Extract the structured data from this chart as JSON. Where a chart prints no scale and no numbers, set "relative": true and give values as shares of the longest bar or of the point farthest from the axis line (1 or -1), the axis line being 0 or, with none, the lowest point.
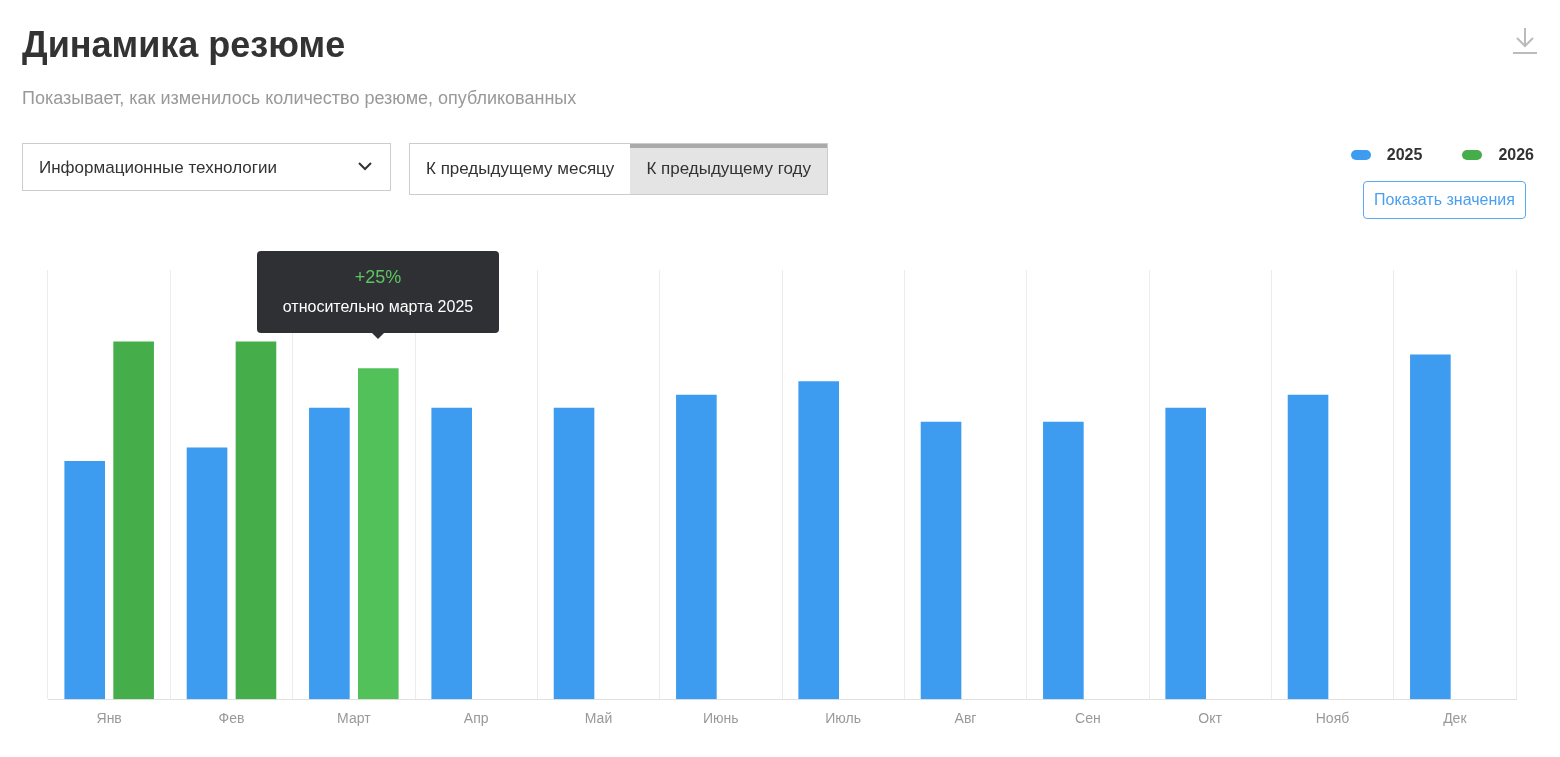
{
  "chart_data": {
    "type": "bar",
    "title": "Динамика резюме",
    "subtitle": "Показывает, как изменилось количество резюме, опубликованных",
    "relative": true,
    "grid": "x",
    "legend": "top right",
    "categories": [
      "Янв",
      "Фев",
      "Март",
      "Апр",
      "Май",
      "Июнь",
      "Июль",
      "Авг",
      "Сен",
      "Окт",
      "Нояб",
      "Дек"
    ],
    "series": [
      {
        "name": "2025",
        "color": "#3d9cf0",
        "values": [
          0.666,
          0.704,
          0.815,
          0.815,
          0.815,
          0.851,
          0.889,
          0.776,
          0.776,
          0.815,
          0.851,
          0.964
        ]
      },
      {
        "name": "2026",
        "color": "#46ad4b",
        "colors": [
          "#46ad4b",
          "#46ad4b",
          "#53c15a",
          "#46ad4b",
          "#46ad4b",
          "#46ad4b",
          "#46ad4b",
          "#46ad4b",
          "#46ad4b",
          "#46ad4b",
          "#46ad4b",
          "#46ad4b"
        ],
        "values": [
          1,
          1,
          0.925,
          null,
          null,
          null,
          null,
          null,
          null,
          null,
          null,
          null
        ]
      }
    ],
    "annotations": [
      "Информационные технологии",
      "К предыдущему месяцу",
      "К предыдущему году",
      "Показать значения",
      "+25%",
      "относительно марта 2025"
    ]
  }
}
